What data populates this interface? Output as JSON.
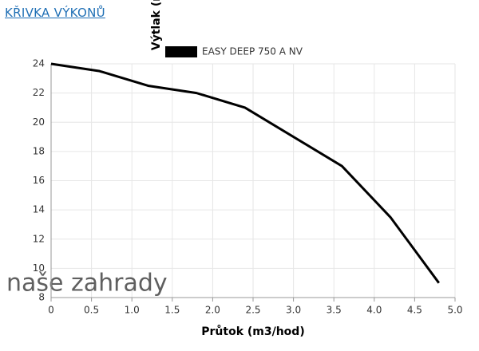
{
  "header": {
    "title": "KŘIVKA VÝKONŮ"
  },
  "watermark": "naše zahrady",
  "chart_data": {
    "type": "line",
    "x": [
      0,
      0.6,
      1.2,
      1.8,
      2.4,
      3.6,
      4.2,
      4.8
    ],
    "series": [
      {
        "name": "EASY DEEP 750 A NV",
        "color": "#000000",
        "values": [
          24,
          23.5,
          22.5,
          22,
          21,
          17,
          13.5,
          9
        ]
      }
    ],
    "xlabel": "Průtok (m3/hod)",
    "ylabel": "Výtlak (m)",
    "xlim": [
      0,
      5
    ],
    "ylim": [
      8,
      24
    ],
    "xticks": [
      0,
      0.5,
      {
        "value": 1,
        "label": "1.0"
      },
      1.5,
      {
        "value": 2,
        "label": "2.0"
      },
      2.5,
      {
        "value": 3,
        "label": "3.0"
      },
      3.5,
      {
        "value": 4,
        "label": "4.0"
      },
      4.5,
      {
        "value": 5,
        "label": "5.0"
      }
    ],
    "yticks": [
      8,
      10,
      12,
      14,
      16,
      18,
      20,
      22,
      24
    ],
    "grid": true,
    "legend": "top"
  }
}
